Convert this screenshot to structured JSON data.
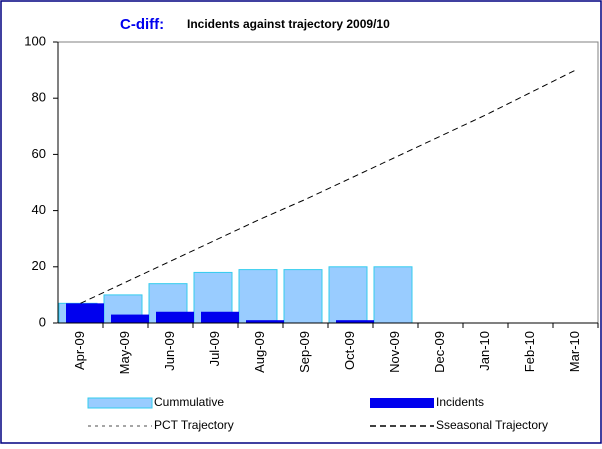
{
  "chart_data": {
    "type": "bar_line",
    "title": {
      "prefix": "C-diff:",
      "text": "Incidents against trajectory 2009/10"
    },
    "categories": [
      "Apr-09",
      "May-09",
      "Jun-09",
      "Jul-09",
      "Aug-09",
      "Sep-09",
      "Oct-09",
      "Nov-09",
      "Dec-09",
      "Jan-10",
      "Feb-10",
      "Mar-10"
    ],
    "series": [
      {
        "name": "Cummulative",
        "kind": "bar",
        "color": "#99ccff",
        "stroke": "#33ccee",
        "values": [
          7,
          10,
          14,
          18,
          19,
          19,
          20,
          20,
          null,
          null,
          null,
          null
        ]
      },
      {
        "name": "Incidents",
        "kind": "bar",
        "color": "#0000ee",
        "values": [
          7,
          3,
          4,
          4,
          1,
          0,
          1,
          0,
          null,
          null,
          null,
          null
        ]
      },
      {
        "name": "PCT Trajectory",
        "kind": "line",
        "color": "#888888",
        "dash": "3,4",
        "values": [
          null,
          null,
          null,
          null,
          null,
          null,
          null,
          null,
          null,
          null,
          null,
          null
        ]
      },
      {
        "name": "Sseasonal Trajectory",
        "kind": "line",
        "color": "#000000",
        "dash": "6,4",
        "values": [
          7,
          14.5,
          22,
          29.5,
          37,
          44,
          51.5,
          59,
          66.5,
          74,
          82,
          90
        ]
      }
    ],
    "ylim": [
      0,
      100
    ],
    "yticks": [
      0,
      20,
      40,
      60,
      80,
      100
    ],
    "grid": false
  }
}
